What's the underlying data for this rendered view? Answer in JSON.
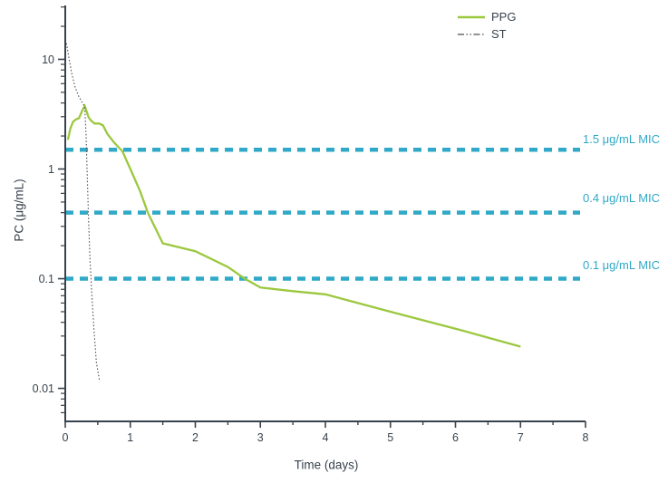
{
  "chart_data": {
    "type": "line",
    "title": "",
    "xlabel": "Time (days)",
    "ylabel": "PC (μg/mL)",
    "x_range": [
      0,
      8
    ],
    "y_range": [
      0.005,
      31
    ],
    "y_scale": "log",
    "x_major_ticks": [
      0,
      1,
      2,
      3,
      4,
      5,
      6,
      7,
      8
    ],
    "x_tick_labels": [
      "0",
      "1",
      "2",
      "3",
      "4",
      "5",
      "6",
      "7",
      "8"
    ],
    "x_minor_tick_step": 0.5,
    "y_major_ticks": [
      10,
      1,
      0.1,
      0.01
    ],
    "y_tick_labels": [
      "10",
      "1",
      "0.1",
      "0.01"
    ],
    "grid": false,
    "legend_position": "top-right",
    "series": [
      {
        "name": "PPG",
        "color": "#9bc83e",
        "style": "solid",
        "points": [
          [
            0.04,
            1.85
          ],
          [
            0.08,
            2.35
          ],
          [
            0.12,
            2.7
          ],
          [
            0.17,
            2.85
          ],
          [
            0.21,
            2.9
          ],
          [
            0.26,
            3.4
          ],
          [
            0.3,
            3.75
          ],
          [
            0.36,
            2.95
          ],
          [
            0.4,
            2.75
          ],
          [
            0.45,
            2.6
          ],
          [
            0.52,
            2.6
          ],
          [
            0.58,
            2.5
          ],
          [
            0.65,
            2.08
          ],
          [
            0.75,
            1.75
          ],
          [
            0.88,
            1.45
          ],
          [
            1.0,
            1.0
          ],
          [
            1.15,
            0.63
          ],
          [
            1.27,
            0.4
          ],
          [
            1.5,
            0.21
          ],
          [
            2.0,
            0.178
          ],
          [
            2.5,
            0.128
          ],
          [
            2.76,
            0.1
          ],
          [
            3.0,
            0.083
          ],
          [
            3.5,
            0.077
          ],
          [
            4.0,
            0.072
          ],
          [
            5.0,
            0.05
          ],
          [
            6.0,
            0.035
          ],
          [
            7.0,
            0.024
          ]
        ]
      },
      {
        "name": "ST",
        "color": "#4d4d4d",
        "style": "dotted",
        "points": [
          [
            0.02,
            14
          ],
          [
            0.06,
            10
          ],
          [
            0.1,
            7.4
          ],
          [
            0.15,
            5.6
          ],
          [
            0.2,
            4.7
          ],
          [
            0.25,
            4.15
          ],
          [
            0.3,
            3.7
          ],
          [
            0.32,
            2.0
          ],
          [
            0.34,
            0.8
          ],
          [
            0.36,
            0.33
          ],
          [
            0.38,
            0.15
          ],
          [
            0.41,
            0.07
          ],
          [
            0.44,
            0.035
          ],
          [
            0.48,
            0.017
          ],
          [
            0.53,
            0.0115
          ]
        ]
      }
    ],
    "reference_lines": [
      {
        "label": "1.5 μg/mL MIC",
        "value": 1.5,
        "color": "#2fa9c7",
        "style": "dashed"
      },
      {
        "label": "0.4 μg/mL MIC",
        "value": 0.4,
        "color": "#2fa9c7",
        "style": "dashed"
      },
      {
        "label": "0.1 μg/mL MIC",
        "value": 0.1,
        "color": "#2fa9c7",
        "style": "dashed"
      }
    ]
  },
  "colors": {
    "ppg_green": "#9bc83e",
    "st_gray": "#4d4d4d",
    "mic_teal": "#2fa9c7",
    "axis_text": "#37424d",
    "background": "#ffffff"
  }
}
